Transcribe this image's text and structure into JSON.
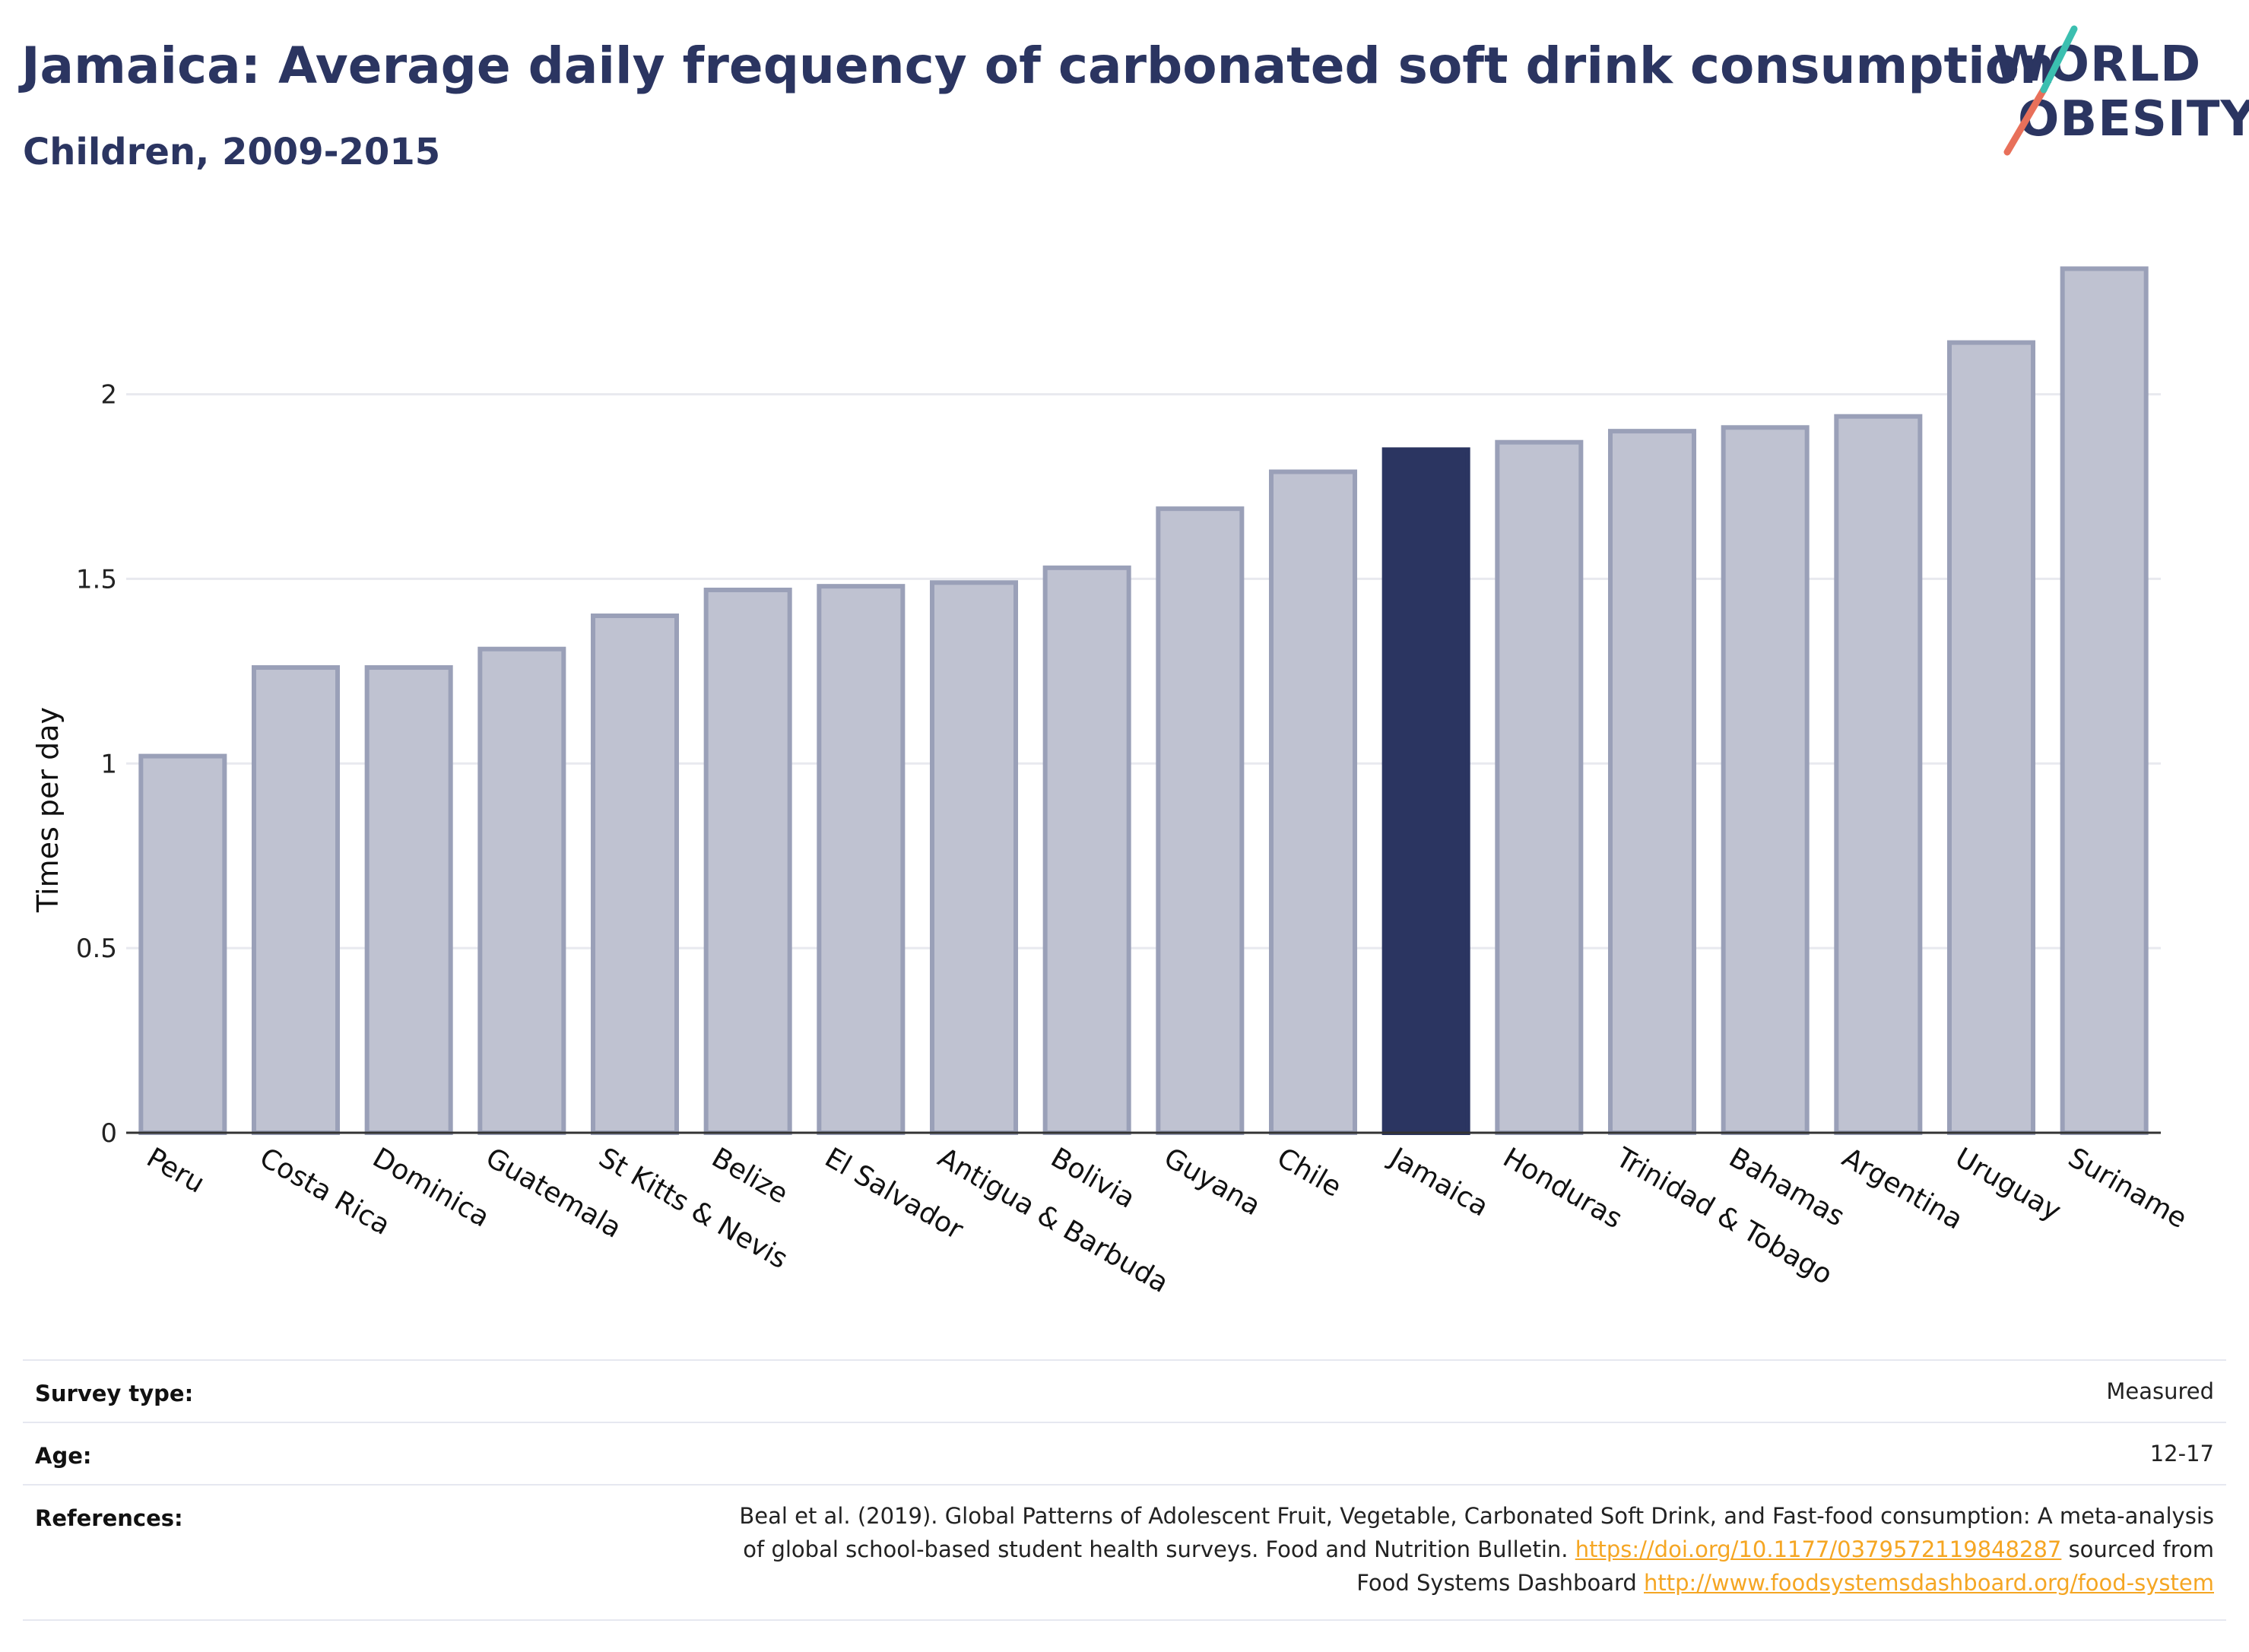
{
  "header": {
    "title": "Jamaica: Average daily frequency of carbonated soft drink consumption",
    "subtitle": "Children, 2009-2015"
  },
  "logo": {
    "line1": "WORLD",
    "line2": "OBESITY"
  },
  "colors": {
    "highlight_bar": "#2b3561",
    "other_bar": "#bfc2d1",
    "other_bar_border": "#9aa0b8",
    "title": "#2b3561",
    "link": "#f5a623",
    "logo_teal": "#3bbfb0",
    "logo_coral": "#e8705a"
  },
  "chart_data": {
    "type": "bar",
    "ylabel": "Times per day",
    "xlabel": "",
    "ylim": [
      0,
      2.45
    ],
    "yticks": [
      0,
      0.5,
      1,
      1.5,
      2
    ],
    "ytick_labels": [
      "0",
      "0.5",
      "1",
      "1.5",
      "2"
    ],
    "grid": true,
    "highlight": "Jamaica",
    "categories": [
      "Peru",
      "Costa Rica",
      "Dominica",
      "Guatemala",
      "St Kitts & Nevis",
      "Belize",
      "El Salvador",
      "Antigua & Barbuda",
      "Bolivia",
      "Guyana",
      "Chile",
      "Jamaica",
      "Honduras",
      "Trinidad & Tobago",
      "Bahamas",
      "Argentina",
      "Uruguay",
      "Suriname"
    ],
    "values": [
      1.02,
      1.26,
      1.26,
      1.31,
      1.4,
      1.47,
      1.48,
      1.49,
      1.53,
      1.69,
      1.79,
      1.85,
      1.87,
      1.9,
      1.91,
      1.94,
      2.14,
      2.34
    ]
  },
  "meta": {
    "survey_type_label": "Survey type:",
    "survey_type_value": "Measured",
    "age_label": "Age:",
    "age_value": "12-17",
    "references_label": "References:",
    "ref_line1": "Beal et al. (2019). Global Patterns of Adolescent Fruit, Vegetable, Carbonated Soft Drink, and Fast-food consumption: A meta-analysis",
    "ref_line2_text": "of global school-based student health surveys. Food and Nutrition Bulletin.",
    "ref_line2_link": "https://doi.org/10.1177/0379572119848287",
    "ref_line2_tail": "sourced from",
    "ref_line3_text": "Food Systems Dashboard",
    "ref_line3_link": "http://www.foodsystemsdashboard.org/food-system"
  }
}
